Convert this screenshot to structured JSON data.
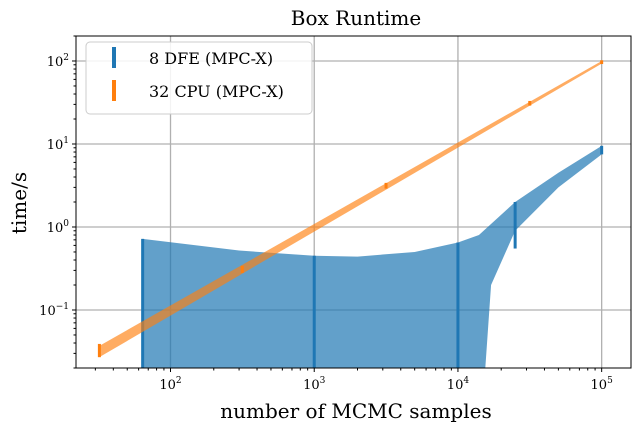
{
  "chart_data": {
    "type": "line",
    "title": "Box Runtime",
    "xlabel": "number of MCMC samples",
    "ylabel": "time/s",
    "xscale": "log",
    "yscale": "log",
    "xlim": [
      22,
      160000
    ],
    "ylim": [
      0.02,
      200
    ],
    "grid": true,
    "legend": {
      "placement": "top-left"
    },
    "x_ticks": [
      {
        "base": "10",
        "exp": "2",
        "value": 100
      },
      {
        "base": "10",
        "exp": "3",
        "value": 1000
      },
      {
        "base": "10",
        "exp": "4",
        "value": 10000
      },
      {
        "base": "10",
        "exp": "5",
        "value": 100000
      }
    ],
    "y_ticks": [
      {
        "base": "10",
        "exp": "−1",
        "value": 0.1
      },
      {
        "base": "10",
        "exp": "0",
        "value": 1
      },
      {
        "base": "10",
        "exp": "1",
        "value": 10
      },
      {
        "base": "10",
        "exp": "2",
        "value": 100
      }
    ],
    "series": [
      {
        "name": "8 DFE (MPC-X)",
        "color": "#1f77b4",
        "fill_color": "#1f77b4",
        "band_upper": [
          [
            64,
            0.72
          ],
          [
            300,
            0.52
          ],
          [
            1000,
            0.45
          ],
          [
            2000,
            0.44
          ],
          [
            5000,
            0.5
          ],
          [
            10000,
            0.65
          ],
          [
            14000,
            0.8
          ],
          [
            25000,
            2.0
          ],
          [
            50000,
            4.5
          ],
          [
            100000,
            9.5
          ]
        ],
        "band_lower": [
          [
            64,
            0.02
          ],
          [
            15500,
            0.02
          ],
          [
            17000,
            0.2
          ],
          [
            25000,
            0.9
          ],
          [
            50000,
            3.0
          ],
          [
            100000,
            7.5
          ]
        ],
        "error_bars": [
          {
            "x": 64,
            "low": 0.02,
            "high": 0.72
          },
          {
            "x": 1000,
            "low": 0.02,
            "high": 0.45
          },
          {
            "x": 10000,
            "low": 0.02,
            "high": 0.65
          },
          {
            "x": 25000,
            "low": 0.55,
            "high": 2.0
          },
          {
            "x": 100000,
            "low": 7.5,
            "high": 9.5
          }
        ]
      },
      {
        "name": "32 CPU (MPC-X)",
        "color": "#ff7f0e",
        "fill_color": "#ff7f0e",
        "band_upper": [
          [
            32,
            0.037
          ],
          [
            100000,
            100
          ]
        ],
        "band_lower": [
          [
            32,
            0.027
          ],
          [
            100000,
            93
          ]
        ],
        "error_bars": [
          {
            "x": 32,
            "low": 0.027,
            "high": 0.039
          },
          {
            "x": 316,
            "low": 0.28,
            "high": 0.34
          },
          {
            "x": 3160,
            "low": 2.9,
            "high": 3.4
          },
          {
            "x": 31600,
            "low": 29,
            "high": 33
          },
          {
            "x": 100000,
            "low": 92,
            "high": 102
          }
        ]
      }
    ]
  }
}
